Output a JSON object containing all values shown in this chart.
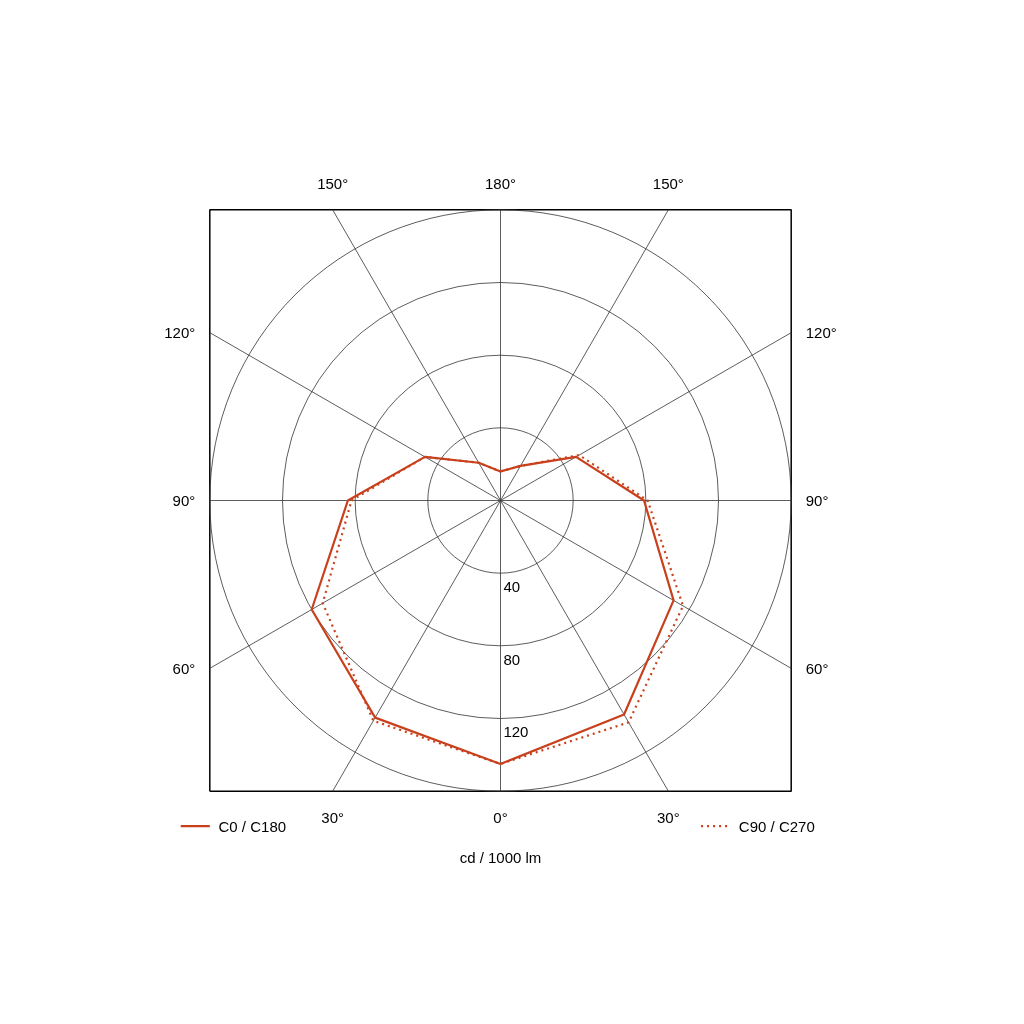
{
  "chart_data": {
    "type": "radar",
    "categories": [
      "180°",
      "150°",
      "120°",
      "90°",
      "60°",
      "30°",
      "0°",
      "30°",
      "60°",
      "90°",
      "120°",
      "150°"
    ],
    "series": [
      {
        "name": "C0 / C180",
        "color": "#c8401c",
        "line_style": "solid",
        "values": [
          16,
          22,
          48,
          79,
          110,
          136,
          145,
          138,
          120,
          84,
          48,
          24
        ]
      },
      {
        "name": "C90 / C270",
        "color": "#c8401c",
        "line_style": "dotted",
        "values": [
          16,
          22,
          50,
          81,
          116,
          141,
          145,
          140,
          113,
          82,
          48,
          24
        ]
      }
    ],
    "ylim": [
      0,
      160
    ],
    "yticks": [
      40,
      80,
      120
    ],
    "xlabel": "cd / 1000 lm",
    "grid": true,
    "legend": "bottom"
  }
}
